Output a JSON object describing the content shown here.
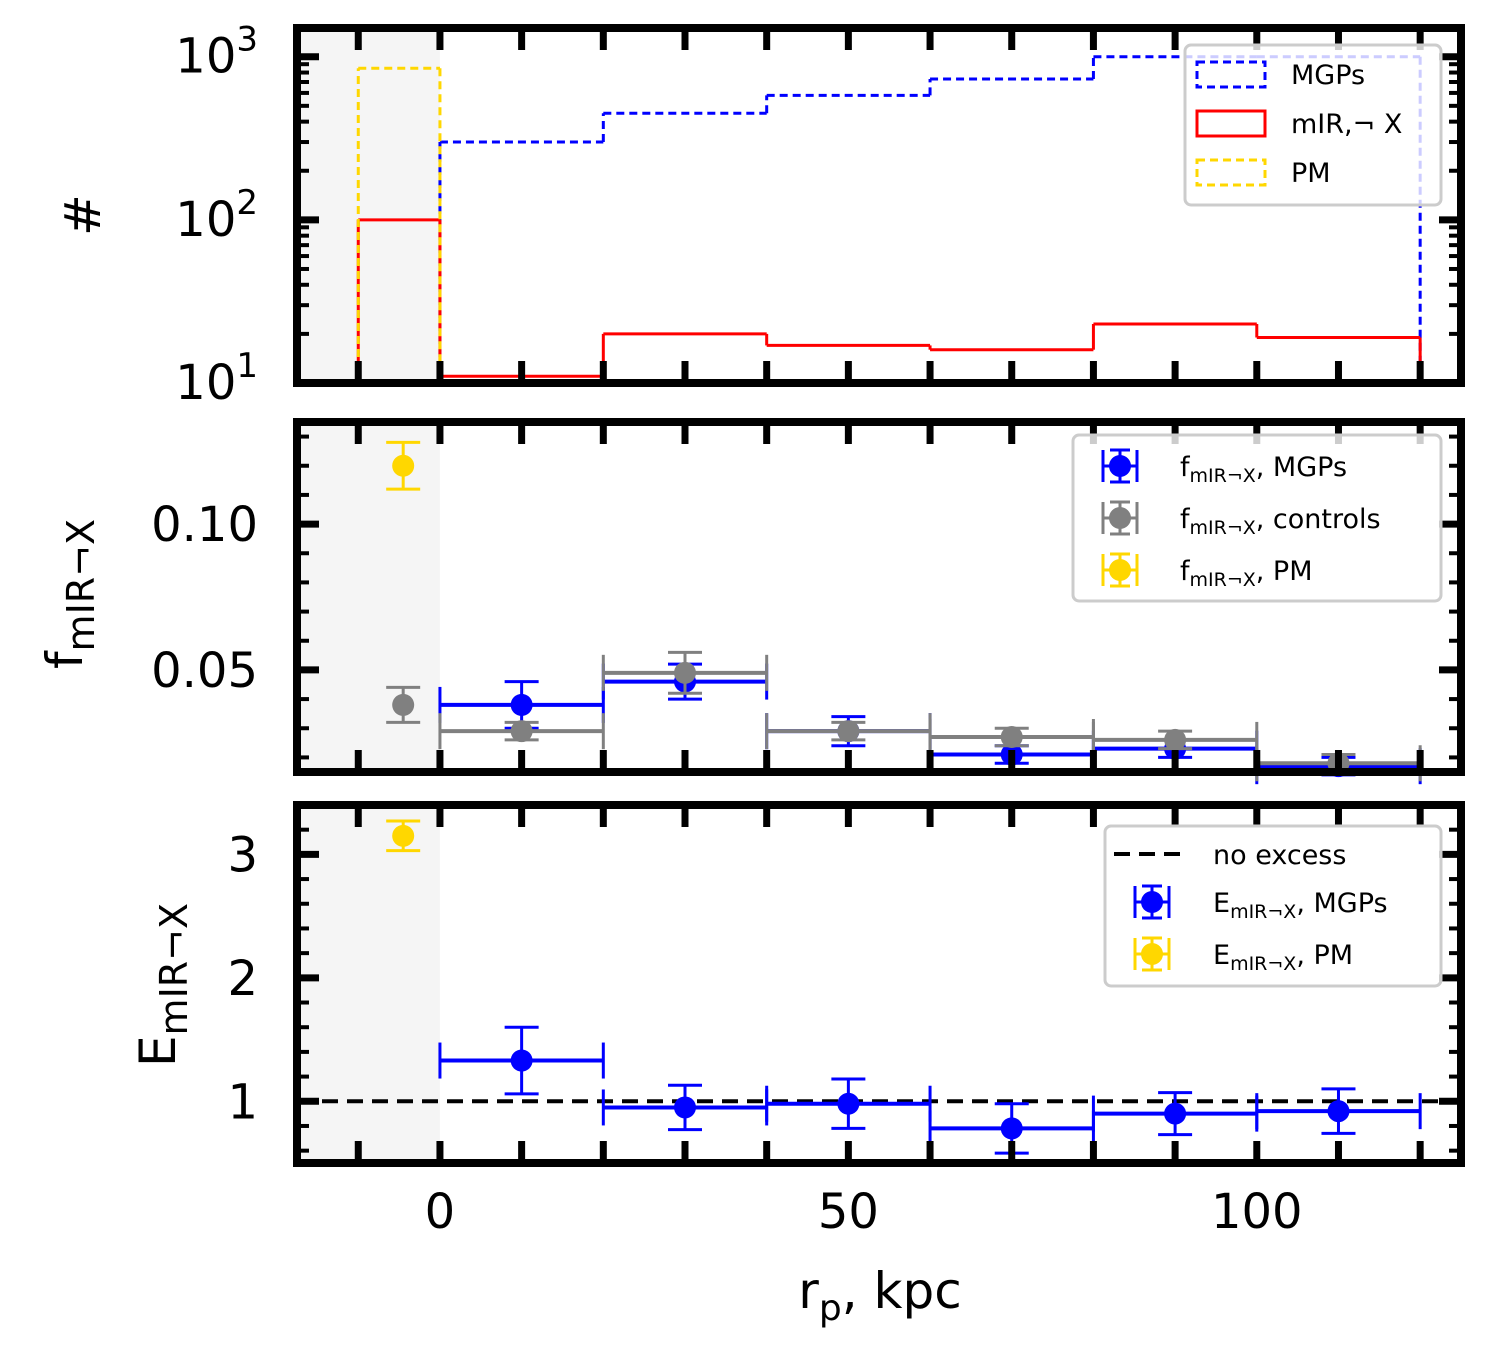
{
  "colors": {
    "mgps": "#0000ff",
    "mir_x": "#ff0000",
    "pm": "#ffd700",
    "controls": "#808080",
    "no_excess": "#000000",
    "shade": "#f5f5f5"
  },
  "chart_data": [
    {
      "panel": "counts",
      "type": "histogram",
      "ylabel": "#",
      "yscale": "log",
      "xlim": [
        -17.5,
        125
      ],
      "ylim": [
        10,
        1500
      ],
      "bin_edges": [
        -10,
        0,
        20,
        40,
        60,
        80,
        100,
        120
      ],
      "series": [
        {
          "name": "MGPs",
          "key": "mgps",
          "counts": [
            null,
            300,
            450,
            580,
            730,
            1000,
            1000
          ],
          "style": "dashed"
        },
        {
          "name": "mIR,¬ X",
          "key": "mir_x",
          "counts": [
            100,
            11,
            20,
            17,
            16,
            23,
            19
          ],
          "style": "solid"
        },
        {
          "name": "PM",
          "key": "pm",
          "counts": [
            850,
            null,
            null,
            null,
            null,
            null,
            null
          ],
          "style": "dashed"
        }
      ],
      "ytick_base": "10",
      "ytick_exponents": [
        "1",
        "2",
        "3"
      ],
      "legend_loc": "top-right"
    },
    {
      "panel": "fraction",
      "type": "errorbar",
      "ylabel": {
        "main": "f",
        "sub": "mIR¬X"
      },
      "xlim": [
        -17.5,
        125
      ],
      "ylim": [
        0.015,
        0.135
      ],
      "yticks": [
        "0.05",
        "0.10"
      ],
      "series": [
        {
          "name": "f",
          "name_sub": "mIR¬X",
          "name_suffix": ", MGPs",
          "key": "mgps",
          "points": [
            {
              "x": 10,
              "xerr": 10,
              "y": 0.038,
              "yerr": 0.008
            },
            {
              "x": 30,
              "xerr": 10,
              "y": 0.046,
              "yerr": 0.006
            },
            {
              "x": 50,
              "xerr": 10,
              "y": 0.029,
              "yerr": 0.005
            },
            {
              "x": 70,
              "xerr": 10,
              "y": 0.021,
              "yerr": 0.003
            },
            {
              "x": 90,
              "xerr": 10,
              "y": 0.023,
              "yerr": 0.003
            },
            {
              "x": 110,
              "xerr": 10,
              "y": 0.017,
              "yerr": 0.003
            }
          ]
        },
        {
          "name": "f",
          "name_sub": "mIR¬X",
          "name_suffix": ", controls",
          "key": "controls",
          "points": [
            {
              "x": -4.5,
              "xerr": 0,
              "y": 0.038,
              "yerr": 0.006
            },
            {
              "x": 10,
              "xerr": 10,
              "y": 0.029,
              "yerr": 0.003
            },
            {
              "x": 30,
              "xerr": 10,
              "y": 0.049,
              "yerr": 0.007
            },
            {
              "x": 50,
              "xerr": 10,
              "y": 0.029,
              "yerr": 0.003
            },
            {
              "x": 70,
              "xerr": 10,
              "y": 0.027,
              "yerr": 0.003
            },
            {
              "x": 90,
              "xerr": 10,
              "y": 0.026,
              "yerr": 0.003
            },
            {
              "x": 110,
              "xerr": 10,
              "y": 0.018,
              "yerr": 0.003
            }
          ]
        },
        {
          "name": "f",
          "name_sub": "mIR¬X",
          "name_suffix": ", PM",
          "key": "pm",
          "points": [
            {
              "x": -4.5,
              "xerr": 0,
              "y": 0.12,
              "yerr": 0.008
            }
          ]
        }
      ],
      "legend_loc": "top-right"
    },
    {
      "panel": "excess",
      "type": "errorbar",
      "ylabel": {
        "main": "E",
        "sub": "mIR¬X"
      },
      "xlabel": {
        "main": "r",
        "sub": "p",
        "suffix": ", kpc"
      },
      "xlim": [
        -17.5,
        125
      ],
      "ylim": [
        0.5,
        3.4
      ],
      "yticks": [
        "1",
        "2",
        "3"
      ],
      "xticks": [
        "0",
        "50",
        "100"
      ],
      "reference_line": {
        "name": "no excess",
        "y": 1.0,
        "key": "no_excess",
        "style": "dashed"
      },
      "series": [
        {
          "name": "E",
          "name_sub": "mIR¬X",
          "name_suffix": ", MGPs",
          "key": "mgps",
          "points": [
            {
              "x": 10,
              "xerr": 10,
              "y": 1.33,
              "yerr": 0.27
            },
            {
              "x": 30,
              "xerr": 10,
              "y": 0.95,
              "yerr": 0.18
            },
            {
              "x": 50,
              "xerr": 10,
              "y": 0.98,
              "yerr": 0.2
            },
            {
              "x": 70,
              "xerr": 10,
              "y": 0.78,
              "yerr": 0.2
            },
            {
              "x": 90,
              "xerr": 10,
              "y": 0.9,
              "yerr": 0.17
            },
            {
              "x": 110,
              "xerr": 10,
              "y": 0.92,
              "yerr": 0.18
            }
          ]
        },
        {
          "name": "E",
          "name_sub": "mIR¬X",
          "name_suffix": ", PM",
          "key": "pm",
          "points": [
            {
              "x": -4.5,
              "xerr": 0,
              "y": 3.15,
              "yerr": 0.12
            }
          ]
        }
      ],
      "legend_loc": "top-right"
    }
  ]
}
